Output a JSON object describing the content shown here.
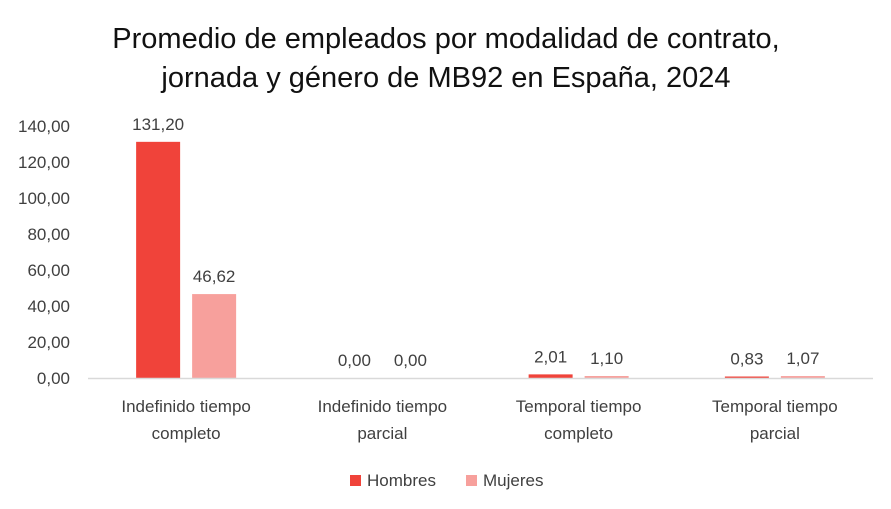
{
  "chart_data": {
    "type": "bar",
    "title": [
      "Promedio de empleados por modalidad de contrato,",
      "jornada y género de MB92 en España, 2024"
    ],
    "categories": [
      [
        "Indefinido tiempo",
        "completo"
      ],
      [
        "Indefinido tiempo",
        "parcial"
      ],
      [
        "Temporal tiempo",
        "completo"
      ],
      [
        "Temporal tiempo",
        "parcial"
      ]
    ],
    "series": [
      {
        "name": "Hombres",
        "color": "#f0433a",
        "values": [
          131.2,
          0.0,
          2.01,
          0.83
        ],
        "labels": [
          "131,20",
          "0,00",
          "2,01",
          "0,83"
        ]
      },
      {
        "name": "Mujeres",
        "color": "#f7a09c",
        "values": [
          46.62,
          0.0,
          1.1,
          1.07
        ],
        "labels": [
          "46,62",
          "0,00",
          "1,10",
          "1,07"
        ]
      }
    ],
    "ylim": [
      0,
      140
    ],
    "yticks": [
      "0,00",
      "20,00",
      "40,00",
      "60,00",
      "80,00",
      "100,00",
      "120,00",
      "140,00"
    ],
    "ytick_values": [
      0,
      20,
      40,
      60,
      80,
      100,
      120,
      140
    ],
    "legend": "bottom",
    "grid": false
  }
}
